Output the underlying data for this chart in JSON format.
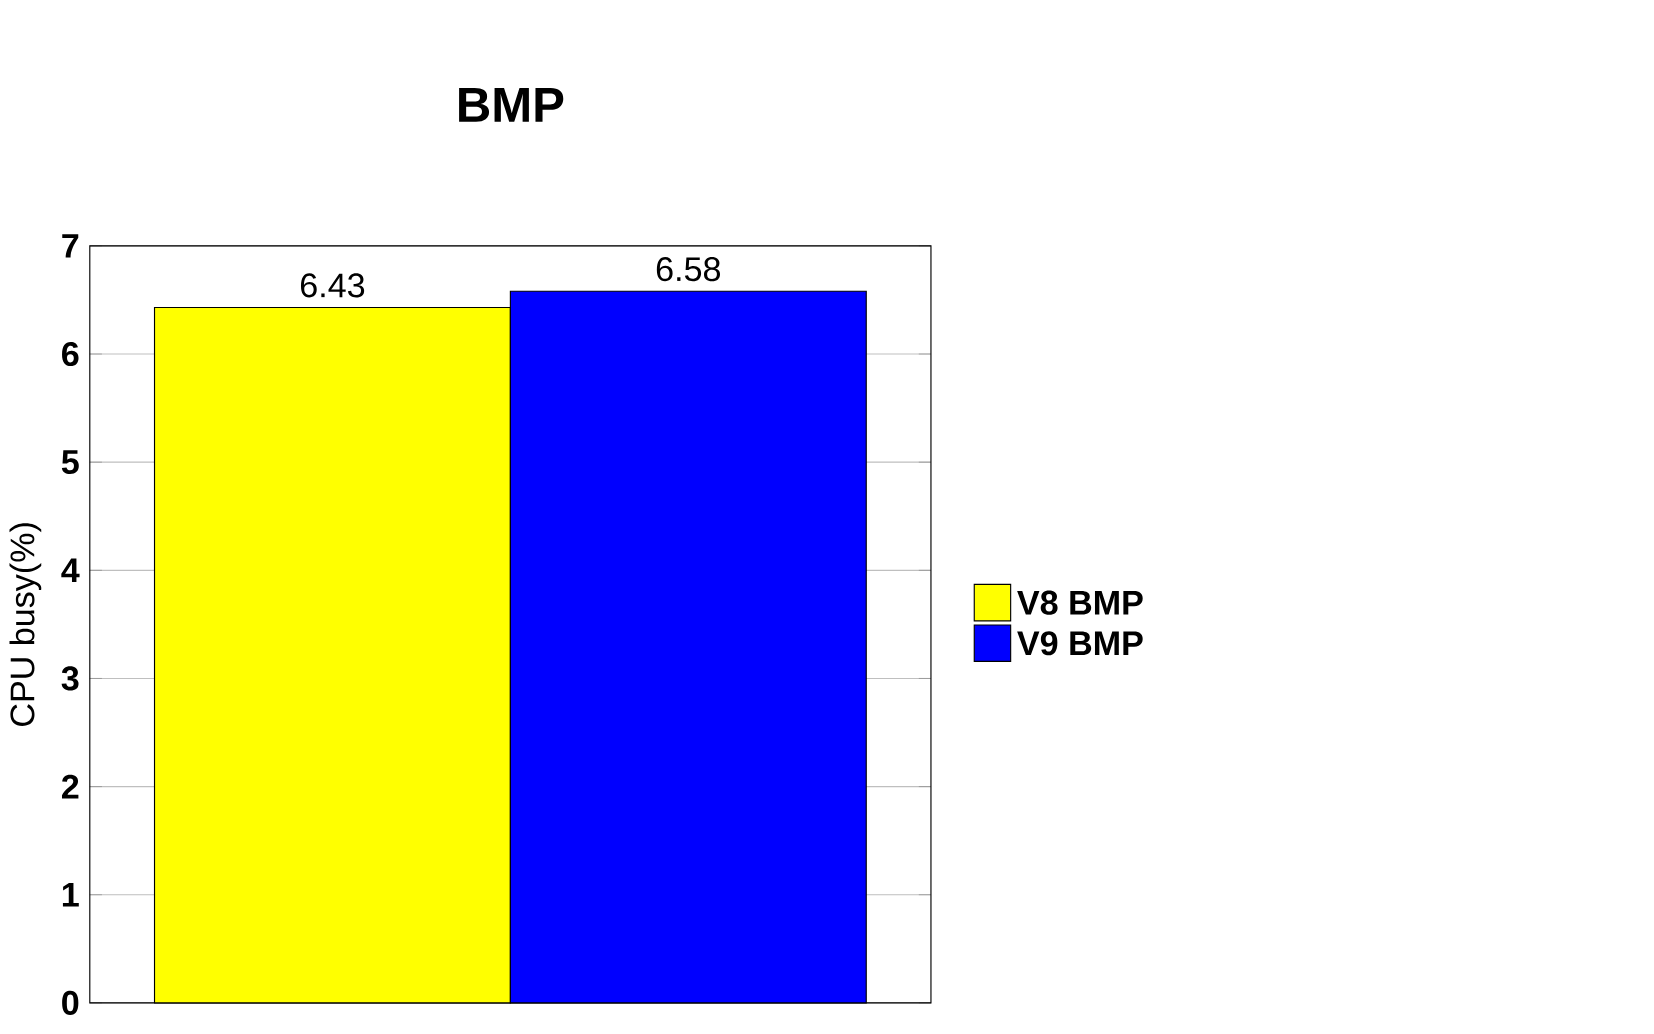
{
  "chart_data": {
    "type": "bar",
    "title": "BMP",
    "ylabel": "CPU busy(%)",
    "categories": [
      null
    ],
    "series": [
      {
        "name": "V8 BMP",
        "color": "#ffff00",
        "values": [
          6.43
        ]
      },
      {
        "name": "V9 BMP",
        "color": "#0000ff",
        "values": [
          6.58
        ]
      }
    ],
    "ylim": [
      0,
      7
    ],
    "yticks": [
      0,
      1,
      2,
      3,
      4,
      5,
      6,
      7
    ],
    "grid": "y",
    "legend": "right",
    "data_labels": true
  }
}
